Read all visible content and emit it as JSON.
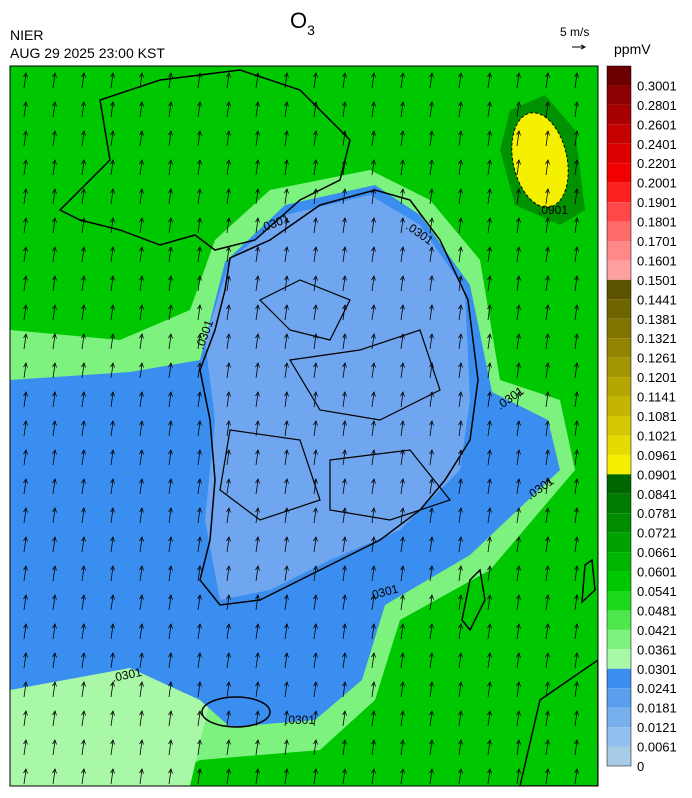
{
  "header": {
    "agency": "NIER",
    "timestamp": "AUG 29 2025 23:00 KST",
    "title": {
      "text": "O",
      "subscript": "3"
    }
  },
  "wind_scale": {
    "label": "5 m/s"
  },
  "colorbar": {
    "unit": "ppmV",
    "items": [
      {
        "label": "0.3001",
        "color": "#6b0000"
      },
      {
        "label": "0.2801",
        "color": "#8b0000"
      },
      {
        "label": "0.2601",
        "color": "#a80000"
      },
      {
        "label": "0.2401",
        "color": "#c40000"
      },
      {
        "label": "0.2201",
        "color": "#dc0000"
      },
      {
        "label": "0.2001",
        "color": "#f20000"
      },
      {
        "label": "0.1901",
        "color": "#ff2020"
      },
      {
        "label": "0.1801",
        "color": "#ff4848"
      },
      {
        "label": "0.1701",
        "color": "#ff6a6a"
      },
      {
        "label": "0.1601",
        "color": "#ff8888"
      },
      {
        "label": "0.1501",
        "color": "#ffa0a0"
      },
      {
        "label": "0.1441",
        "color": "#5c5200"
      },
      {
        "label": "0.1381",
        "color": "#6e6400"
      },
      {
        "label": "0.1321",
        "color": "#807400"
      },
      {
        "label": "0.1261",
        "color": "#928400"
      },
      {
        "label": "0.1201",
        "color": "#a49600"
      },
      {
        "label": "0.1141",
        "color": "#b4a600"
      },
      {
        "label": "0.1081",
        "color": "#c4b600"
      },
      {
        "label": "0.1021",
        "color": "#d4c800"
      },
      {
        "label": "0.0961",
        "color": "#e4dc00"
      },
      {
        "label": "0.0901",
        "color": "#f4f000"
      },
      {
        "label": "0.0841",
        "color": "#006600"
      },
      {
        "label": "0.0781",
        "color": "#007a00"
      },
      {
        "label": "0.0721",
        "color": "#008e00"
      },
      {
        "label": "0.0661",
        "color": "#00a200"
      },
      {
        "label": "0.0601",
        "color": "#00b600"
      },
      {
        "label": "0.0541",
        "color": "#00c800"
      },
      {
        "label": "0.0481",
        "color": "#1ed81e"
      },
      {
        "label": "0.0421",
        "color": "#4ee84e"
      },
      {
        "label": "0.0361",
        "color": "#7ef27e"
      },
      {
        "label": "0.0301",
        "color": "#a8f8a8"
      },
      {
        "label": "0.0241",
        "color": "#3a8ef0"
      },
      {
        "label": "0.0181",
        "color": "#5a9eee"
      },
      {
        "label": "0.0121",
        "color": "#78b0ee"
      },
      {
        "label": "0.0061",
        "color": "#92c0ee"
      },
      {
        "label": "0",
        "color": "#a8cce8"
      }
    ]
  },
  "contour_labels": [
    ".0301",
    ".0301",
    ".0301",
    ".0301",
    ".0301",
    ".0301",
    ".0301",
    ".0301",
    ".0901"
  ]
}
